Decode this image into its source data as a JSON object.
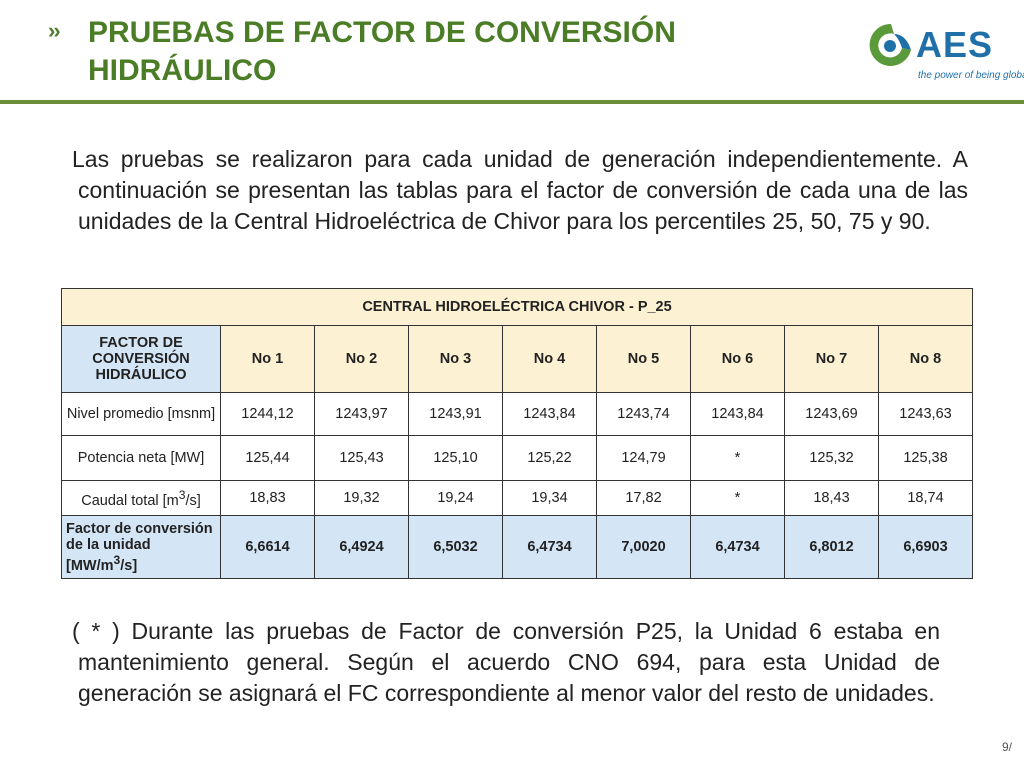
{
  "header": {
    "bullet": "››",
    "title": "PRUEBAS DE FACTOR DE CONVERSIÓN HIDRÁULICO",
    "logo_text": "AES",
    "logo_tagline": "the power of being global",
    "accent_color": "#4a7d26",
    "logo_color": "#1f6fa9"
  },
  "intro": "Las pruebas se realizaron para cada unidad de generación independientemente. A continuación se presentan las tablas para el factor de conversión de cada una de las unidades de la Central Hidroeléctrica  de Chivor para los percentiles 25, 50, 75 y 90.",
  "table": {
    "caption": "CENTRAL HIDROELÉCTRICA CHIVOR - P_25",
    "header_label": "FACTOR DE CONVERSIÓN HIDRÁULICO",
    "columns": [
      "No 1",
      "No 2",
      "No 3",
      "No 4",
      "No 5",
      "No 6",
      "No 7",
      "No 8"
    ],
    "rows": [
      {
        "label": "Nivel promedio [msnm]",
        "values": [
          "1244,12",
          "1243,97",
          "1243,91",
          "1243,84",
          "1243,74",
          "1243,84",
          "1243,69",
          "1243,63"
        ]
      },
      {
        "label": "Potencia neta [MW]",
        "values": [
          "125,44",
          "125,43",
          "125,10",
          "125,22",
          "124,79",
          "*",
          "125,32",
          "125,38"
        ]
      },
      {
        "label_pre": "Caudal total [m",
        "label_sup": "3",
        "label_post": "/s]",
        "values": [
          "18,83",
          "19,32",
          "19,24",
          "19,34",
          "17,82",
          "*",
          "18,43",
          "18,74"
        ]
      },
      {
        "label_pre": "Factor de conversión de la unidad [MW/m",
        "label_sup": "3",
        "label_post": "/s]",
        "values": [
          "6,6614",
          "6,4924",
          "6,5032",
          "6,4734",
          "7,0020",
          "6,4734",
          "6,8012",
          "6,6903"
        ]
      }
    ]
  },
  "note": "( * ) Durante las pruebas de Factor de conversión P25, la Unidad 6 estaba en mantenimiento general. Según el acuerdo  CNO 694, para esta Unidad de generación se asignará el FC correspondiente al menor valor del resto de unidades.",
  "page_number": "9/"
}
